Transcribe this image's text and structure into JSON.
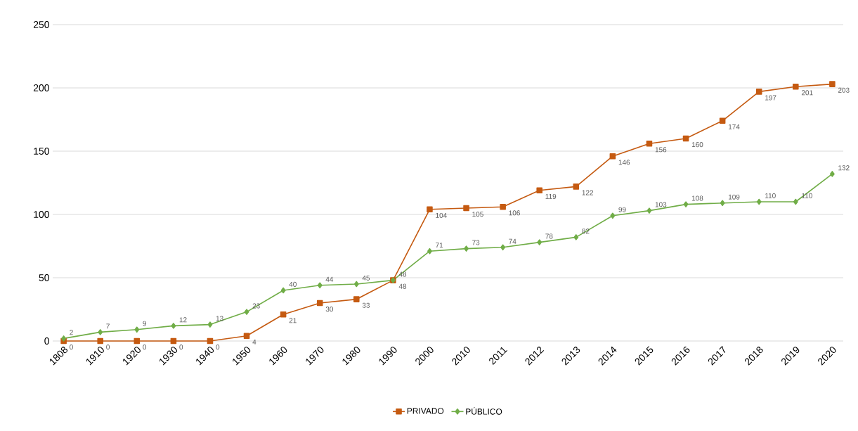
{
  "chart_data": {
    "type": "line",
    "categories": [
      "1808",
      "1910",
      "1920",
      "1930",
      "1940",
      "1950",
      "1960",
      "1970",
      "1980",
      "1990",
      "2000",
      "2010",
      "2011",
      "2012",
      "2013",
      "2014",
      "2015",
      "2016",
      "2017",
      "2018",
      "2019",
      "2020"
    ],
    "series": [
      {
        "name": "PRIVADO",
        "color": "#c55a11",
        "marker": "square",
        "values": [
          0,
          0,
          0,
          0,
          0,
          4,
          21,
          30,
          33,
          48,
          104,
          105,
          106,
          119,
          122,
          146,
          156,
          160,
          174,
          197,
          201,
          203
        ]
      },
      {
        "name": "PÚBLICO",
        "color": "#70ad47",
        "marker": "diamond",
        "values": [
          2,
          7,
          9,
          12,
          13,
          23,
          40,
          44,
          45,
          48,
          71,
          73,
          74,
          78,
          82,
          99,
          103,
          108,
          109,
          110,
          110,
          132
        ]
      }
    ],
    "ylim": [
      0,
      250
    ],
    "yticks": [
      0,
      50,
      100,
      150,
      200,
      250
    ],
    "grid": "y",
    "legend": "bottom",
    "data_labels": true,
    "line_style": "solid"
  }
}
